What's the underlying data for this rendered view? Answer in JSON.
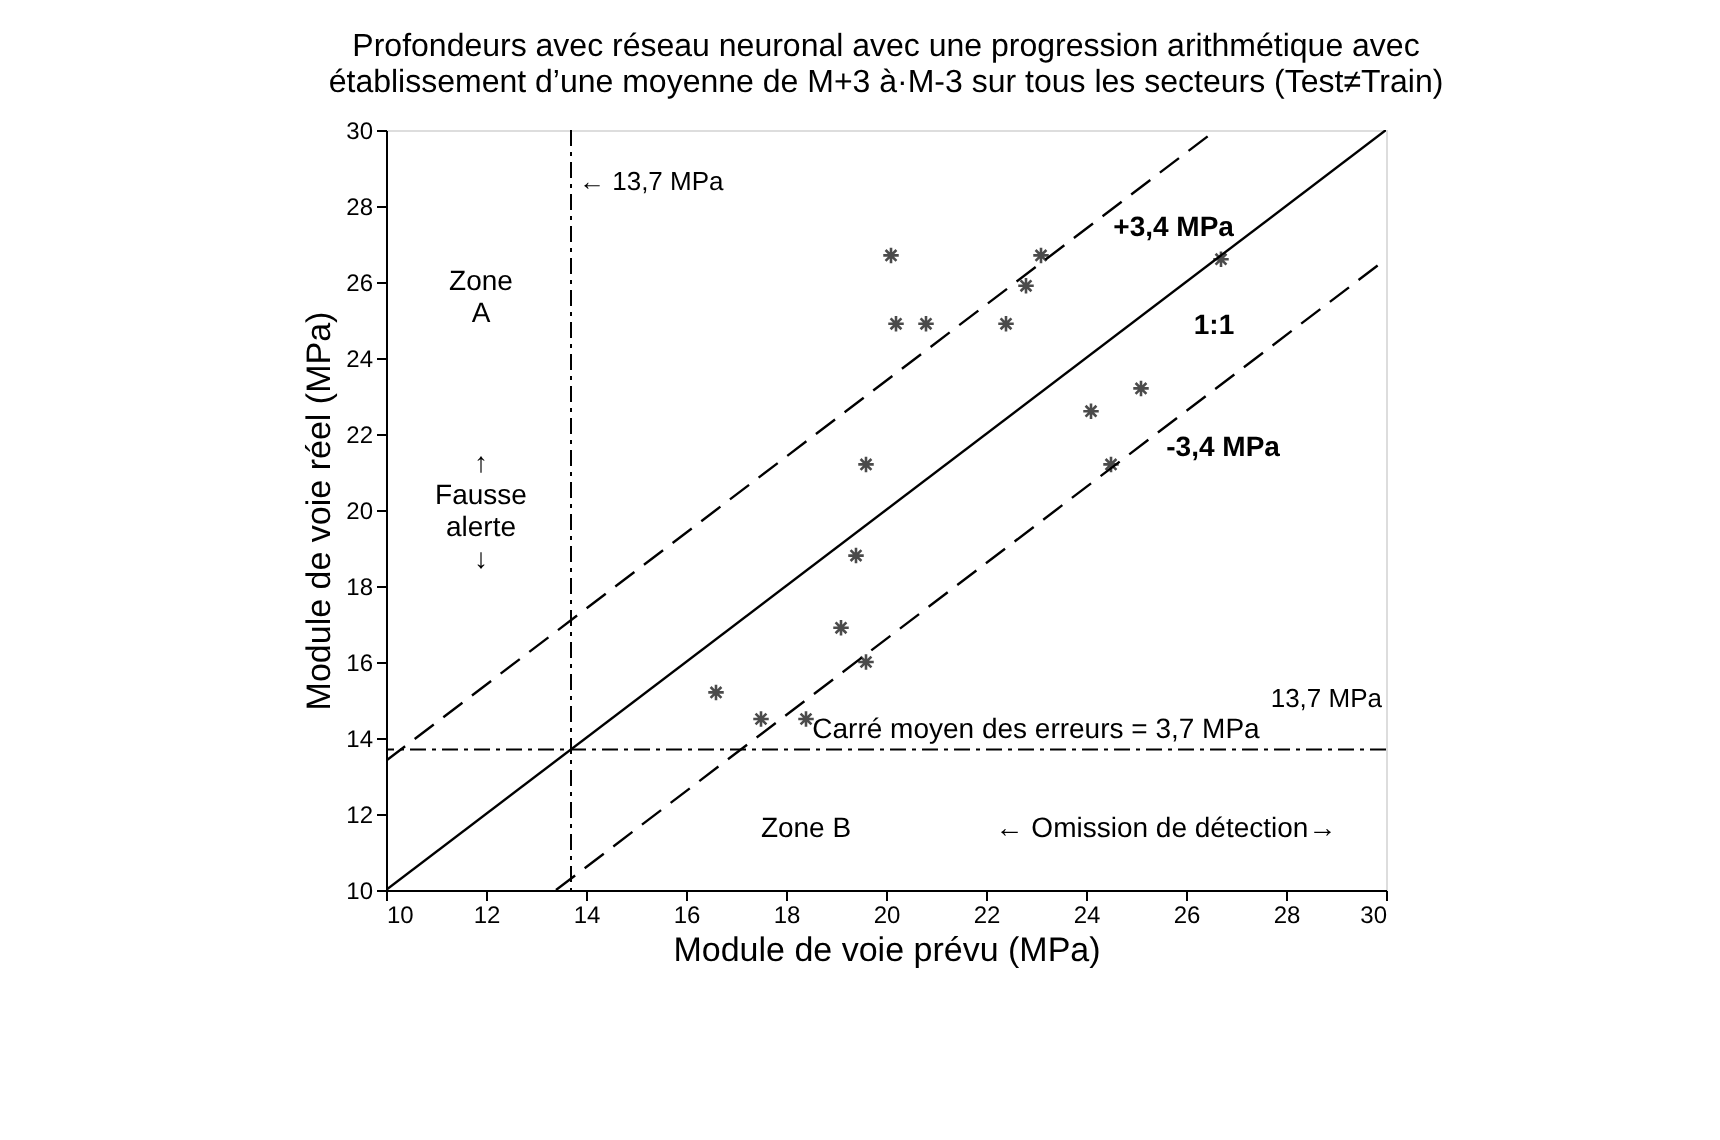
{
  "chart_data": {
    "type": "scatter",
    "title": "Profondeurs avec réseau neuronal avec une progression arithmétique avec\nétablissement d’une moyenne de M+3 à·M-3 sur tous les secteurs (Test≠Train)",
    "xlabel": "Module de voie prévu (MPa)",
    "ylabel": "Module de voie réel (MPa)",
    "xlim": [
      10,
      30
    ],
    "ylim": [
      10,
      30
    ],
    "xticks": [
      10,
      12,
      14,
      16,
      18,
      20,
      22,
      24,
      26,
      28,
      30
    ],
    "yticks": [
      10,
      12,
      14,
      16,
      18,
      20,
      22,
      24,
      26,
      28,
      30
    ],
    "grid": false,
    "marker": "cross",
    "series": [
      {
        "color": "#000000",
        "x": [
          20.1,
          23.1,
          22.8,
          20.2,
          20.8,
          22.4,
          26.7,
          25.1,
          24.1,
          24.5,
          19.6,
          19.4,
          19.1,
          19.6,
          16.6,
          17.5,
          18.4
        ],
        "values": [
          26.7,
          26.7,
          25.9,
          24.9,
          24.9,
          24.9,
          26.6,
          23.2,
          22.6,
          21.2,
          21.2,
          18.8,
          16.9,
          16.0,
          15.2,
          14.5,
          14.5
        ]
      },
      {
        "type": "line",
        "name": "1:1",
        "color": "#000000",
        "line_style": "solid",
        "marker": "none",
        "x": [
          10,
          30
        ],
        "values": [
          10,
          30
        ]
      },
      {
        "type": "line",
        "name": "+3,4 MPa",
        "color": "#000000",
        "line_style": "dashed",
        "marker": "none",
        "x": [
          10,
          26.6
        ],
        "values": [
          13.4,
          30
        ]
      },
      {
        "type": "line",
        "name": "-3,4 MPa",
        "color": "#000000",
        "line_style": "dashed",
        "marker": "none",
        "x": [
          13.4,
          30
        ],
        "values": [
          10,
          26.6
        ]
      }
    ],
    "ref_lines": [
      {
        "axis": "x",
        "value": 13.7,
        "label": "← 13,7 MPa",
        "color": "#000000",
        "line_style": "dashed"
      },
      {
        "axis": "y",
        "value": 13.7,
        "label": "13,7 MPa",
        "color": "#000000",
        "line_style": "dashed"
      }
    ],
    "annotations": [
      "Zone\nA",
      "↑\nFausse\nalerte\n↓",
      "Carré moyen des erreurs = 3,7 MPa",
      "Zone B",
      "← Omission de détection→"
    ]
  }
}
